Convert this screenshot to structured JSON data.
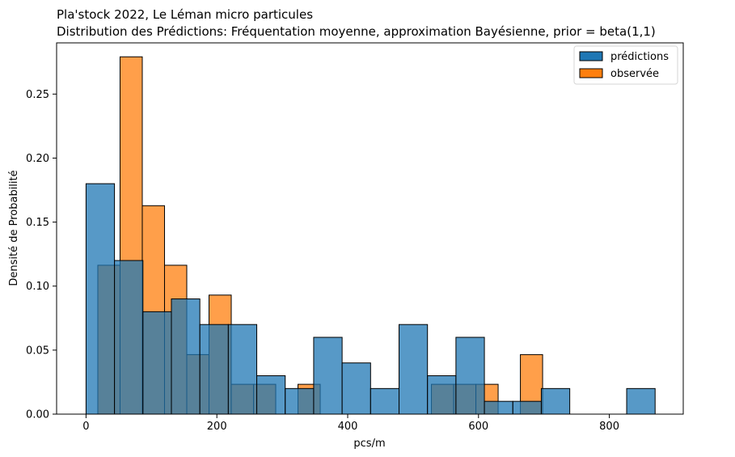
{
  "chart_data": {
    "type": "bar",
    "title": "Pla'stock 2022, Le Léman micro particules",
    "subtitle": "Distribution des Prédictions: Fréquentation moyenne,  approximation Bayésienne, prior = beta(1,1)",
    "xlabel": "pcs/m",
    "ylabel": "Densité de Probabilité",
    "xlim": [
      -45,
      913
    ],
    "ylim": [
      0,
      0.29
    ],
    "xticks": [
      0,
      200,
      400,
      600,
      800
    ],
    "yticks": [
      0.0,
      0.05,
      0.1,
      0.15,
      0.2,
      0.25
    ],
    "ytick_labels": [
      "0.00",
      "0.05",
      "0.10",
      "0.15",
      "0.20",
      "0.25"
    ],
    "legend_position": "top-right",
    "series": [
      {
        "name": "prédictions",
        "color": "#1f77b4",
        "bin_width": 43.5,
        "bins": [
          {
            "x0": 0,
            "value": 0.18
          },
          {
            "x0": 43.5,
            "value": 0.12
          },
          {
            "x0": 87,
            "value": 0.08
          },
          {
            "x0": 130.5,
            "value": 0.09
          },
          {
            "x0": 174,
            "value": 0.07
          },
          {
            "x0": 217.5,
            "value": 0.07
          },
          {
            "x0": 261,
            "value": 0.03
          },
          {
            "x0": 304.5,
            "value": 0.02
          },
          {
            "x0": 348,
            "value": 0.06
          },
          {
            "x0": 391.5,
            "value": 0.04
          },
          {
            "x0": 435,
            "value": 0.02
          },
          {
            "x0": 478.5,
            "value": 0.07
          },
          {
            "x0": 522,
            "value": 0.03
          },
          {
            "x0": 565.5,
            "value": 0.06
          },
          {
            "x0": 609,
            "value": 0.01
          },
          {
            "x0": 652.5,
            "value": 0.01
          },
          {
            "x0": 696,
            "value": 0.02
          },
          {
            "x0": 826.5,
            "value": 0.02
          }
        ]
      },
      {
        "name": "observée",
        "color": "#ff7f0e",
        "bin_width": 34,
        "bins": [
          {
            "x0": 18,
            "value": 0.1163
          },
          {
            "x0": 52,
            "value": 0.2791
          },
          {
            "x0": 86,
            "value": 0.1628
          },
          {
            "x0": 120,
            "value": 0.1163
          },
          {
            "x0": 154,
            "value": 0.0465
          },
          {
            "x0": 188,
            "value": 0.093
          },
          {
            "x0": 222,
            "value": 0.0233
          },
          {
            "x0": 256,
            "value": 0.0233
          },
          {
            "x0": 324,
            "value": 0.0233
          },
          {
            "x0": 528,
            "value": 0.0233
          },
          {
            "x0": 562,
            "value": 0.0233
          },
          {
            "x0": 596,
            "value": 0.0233
          },
          {
            "x0": 664,
            "value": 0.0465
          }
        ]
      }
    ]
  }
}
